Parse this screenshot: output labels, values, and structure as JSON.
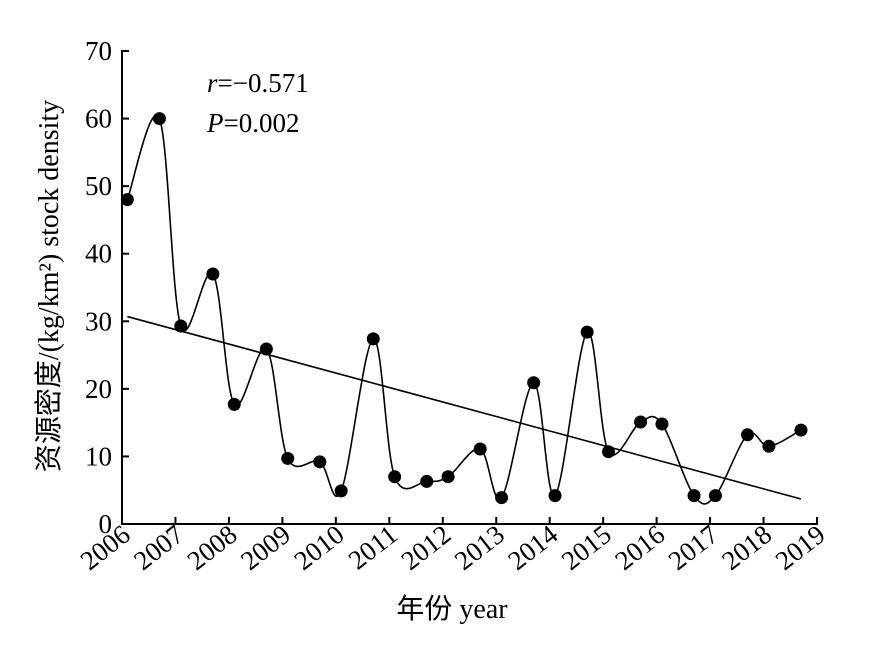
{
  "chart_data": {
    "type": "line",
    "xlabel": "年份 year",
    "ylabel": "资源密度/(kg/km²) stock density",
    "xlim": [
      2006,
      2019
    ],
    "ylim": [
      0,
      70
    ],
    "x_ticks": [
      "2006",
      "2007",
      "2008",
      "2009",
      "2010",
      "2011",
      "2012",
      "2013",
      "2014",
      "2015",
      "2016",
      "2017",
      "2018",
      "2019"
    ],
    "y_ticks": [
      "0",
      "10",
      "20",
      "30",
      "40",
      "50",
      "60",
      "70"
    ],
    "annotation": {
      "r_symbol": "r",
      "r_value": "=−0.571",
      "p_symbol": "P",
      "p_value": "=0.002"
    },
    "series": [
      {
        "style": "smooth-line-with-markers",
        "points": [
          {
            "x": 2006.1,
            "y": 48
          },
          {
            "x": 2006.7,
            "y": 60
          },
          {
            "x": 2007.1,
            "y": 29.3
          },
          {
            "x": 2007.7,
            "y": 37
          },
          {
            "x": 2008.1,
            "y": 17.7
          },
          {
            "x": 2008.7,
            "y": 25.9
          },
          {
            "x": 2009.1,
            "y": 9.7
          },
          {
            "x": 2009.7,
            "y": 9.2
          },
          {
            "x": 2010.1,
            "y": 4.9
          },
          {
            "x": 2010.7,
            "y": 27.4
          },
          {
            "x": 2011.1,
            "y": 7.0
          },
          {
            "x": 2011.7,
            "y": 6.3
          },
          {
            "x": 2012.1,
            "y": 7.0
          },
          {
            "x": 2012.7,
            "y": 11.1
          },
          {
            "x": 2013.1,
            "y": 3.9
          },
          {
            "x": 2013.7,
            "y": 20.9
          },
          {
            "x": 2014.1,
            "y": 4.2
          },
          {
            "x": 2014.7,
            "y": 28.4
          },
          {
            "x": 2015.1,
            "y": 10.7
          },
          {
            "x": 2015.7,
            "y": 15.1
          },
          {
            "x": 2016.1,
            "y": 14.8
          },
          {
            "x": 2016.7,
            "y": 4.2
          },
          {
            "x": 2017.1,
            "y": 4.2
          },
          {
            "x": 2017.7,
            "y": 13.2
          },
          {
            "x": 2018.1,
            "y": 11.5
          },
          {
            "x": 2018.7,
            "y": 13.9
          }
        ]
      },
      {
        "style": "trend-line",
        "points": [
          {
            "x": 2006.1,
            "y": 30.7
          },
          {
            "x": 2018.7,
            "y": 3.7
          }
        ]
      }
    ],
    "grid": false,
    "legend": "none"
  }
}
